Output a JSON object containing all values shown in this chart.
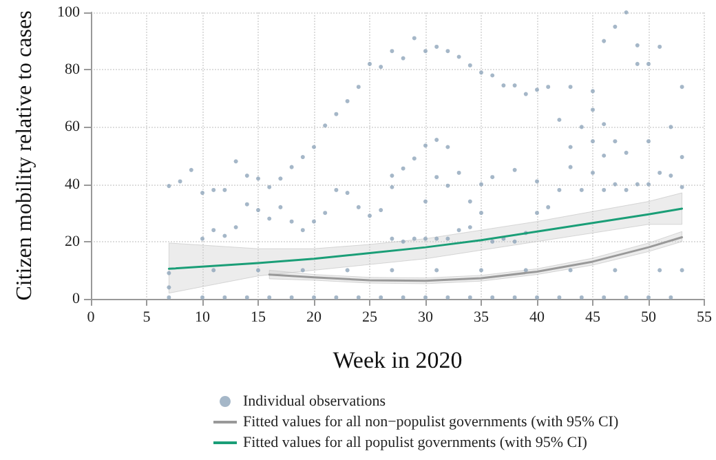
{
  "chart_data": {
    "type": "scatter",
    "xlabel": "Week in 2020",
    "ylabel": "Citizen mobility relative to cases",
    "xlim": [
      0,
      55
    ],
    "xticks": [
      0,
      5,
      10,
      15,
      20,
      25,
      30,
      35,
      40,
      45,
      50,
      55
    ],
    "ylim": [
      0,
      100
    ],
    "yticks": [
      0,
      20,
      40,
      60,
      80,
      100
    ],
    "grid": true,
    "legend": "bottom",
    "line_style": "solid",
    "series": [
      {
        "name": "Individual observations",
        "marker": "circle",
        "color": "#8fa5ba",
        "x": [
          7,
          8,
          9,
          10,
          11,
          12,
          13,
          14,
          15,
          16,
          17,
          18,
          19,
          20,
          21,
          22,
          23,
          24,
          25,
          26,
          27,
          28,
          29,
          30,
          31,
          32,
          33,
          34,
          35,
          36,
          37,
          38,
          39,
          40,
          41,
          42,
          43,
          45,
          45,
          46,
          46,
          47,
          48,
          49,
          49,
          50,
          51,
          52,
          53,
          53,
          30,
          31,
          32,
          29,
          28,
          27,
          27,
          30,
          31,
          32,
          33,
          34,
          35,
          36,
          38,
          40,
          43,
          44,
          48,
          50,
          47,
          45,
          46,
          7,
          7,
          7,
          10,
          11,
          12,
          13,
          14,
          15,
          16,
          17,
          18,
          19,
          20,
          21,
          22,
          23,
          24,
          25,
          26,
          27,
          28,
          29,
          30,
          31,
          32,
          33,
          34,
          35,
          36,
          37,
          38,
          39,
          40,
          41,
          42,
          43,
          44,
          45,
          46,
          47,
          48,
          49,
          50,
          51,
          52,
          53,
          10,
          12,
          14,
          16,
          18,
          20,
          22,
          24,
          26,
          28,
          30,
          32,
          34,
          36,
          38,
          40,
          42,
          44,
          46,
          48,
          50,
          52,
          11,
          15,
          19,
          23,
          27,
          31,
          35,
          39,
          43,
          47,
          51,
          53
        ],
        "values": [
          39.4,
          41,
          45,
          37,
          38,
          38,
          48,
          43,
          42,
          39,
          42,
          46,
          49.5,
          53,
          60.5,
          64.5,
          69,
          74,
          82,
          81,
          86.5,
          84,
          91,
          86.5,
          88,
          86.5,
          84.5,
          81.5,
          79,
          78,
          74.5,
          74.5,
          71.5,
          73,
          74,
          62.5,
          74,
          72.5,
          66,
          90,
          61,
          95,
          100,
          88.5,
          82,
          82,
          88,
          60,
          74,
          49.5,
          53.5,
          55.5,
          53,
          49,
          45.5,
          43,
          39,
          34,
          42.5,
          39.5,
          44,
          34,
          40,
          42.5,
          45,
          41,
          53,
          60,
          51,
          55,
          55,
          55,
          50,
          9,
          4,
          0.5,
          21,
          24,
          22,
          25,
          33,
          31,
          28,
          32,
          27,
          24,
          27,
          30,
          38,
          37,
          32,
          29,
          31,
          21,
          20,
          21,
          21,
          21,
          21,
          24,
          25,
          30,
          20,
          21,
          20,
          23,
          30,
          32,
          38,
          46,
          38,
          44,
          38,
          40,
          38,
          40,
          40,
          44,
          43,
          39,
          0.5,
          0.5,
          0.5,
          0.5,
          0.5,
          0.5,
          0.5,
          0.5,
          0.5,
          0.5,
          0.5,
          0.5,
          0.5,
          0.5,
          0.5,
          0.5,
          0.5,
          0.5,
          0.5,
          0.5,
          0.5,
          0.5,
          10,
          10,
          10,
          10,
          10,
          10,
          10,
          10,
          10,
          10,
          10,
          10
        ]
      },
      {
        "name": "Fitted values for all non−populist governments (with 95% CI)",
        "type": "line",
        "marker": "none",
        "color": "#999999",
        "x": [
          16,
          20,
          25,
          30,
          35,
          40,
          45,
          50,
          53
        ],
        "values": [
          8.5,
          7.5,
          6.5,
          6.3,
          7.2,
          9.5,
          13,
          18,
          21.5
        ],
        "lower": [
          7,
          6.5,
          5.5,
          5.3,
          6.2,
          8.5,
          11.8,
          16.5,
          20
        ],
        "upper": [
          10,
          8.5,
          7.5,
          7.3,
          8.2,
          10.5,
          14.2,
          19.5,
          23.5
        ]
      },
      {
        "name": "Fitted values for all populist governments (with 95% CI)",
        "type": "line",
        "marker": "none",
        "color": "#1a9e77",
        "x": [
          7,
          15,
          20,
          25,
          30,
          35,
          40,
          45,
          50,
          53
        ],
        "values": [
          10.5,
          12.5,
          14,
          16,
          18,
          20.5,
          23.5,
          26.5,
          29.5,
          31.5
        ],
        "lower": [
          2,
          8,
          10,
          12,
          14,
          17,
          20,
          23,
          26,
          26
        ],
        "upper": [
          19.5,
          17.5,
          17.5,
          19,
          21,
          24,
          27,
          30.5,
          34,
          37
        ]
      }
    ]
  }
}
